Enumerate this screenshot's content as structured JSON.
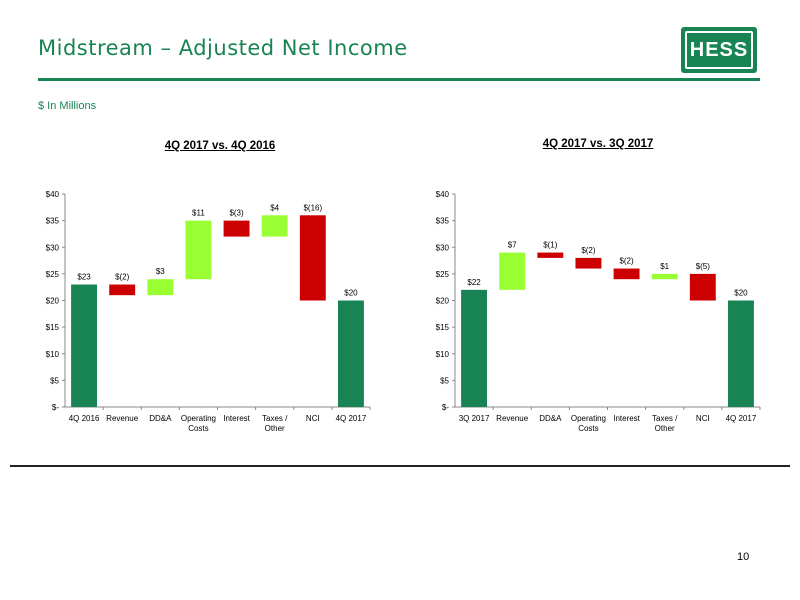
{
  "header": {
    "title": "Midstream – Adjusted Net Income",
    "units": "$ In Millions",
    "logo_text": "HESS"
  },
  "footer": {
    "page_number": "10"
  },
  "colors": {
    "start_end": "#188453",
    "increase": "#99FF33",
    "decrease": "#CC0000",
    "brand": "#188453"
  },
  "chart_data": [
    {
      "type": "bar",
      "subtype": "waterfall",
      "title": "4Q 2017 vs. 4Q 2016",
      "ylim": [
        0,
        40
      ],
      "yticks": [
        0,
        5,
        10,
        15,
        20,
        25,
        30,
        35,
        40
      ],
      "ytick_labels": [
        "$-",
        "$5",
        "$10",
        "$15",
        "$20",
        "$25",
        "$30",
        "$35",
        "$40"
      ],
      "categories": [
        "4Q 2016",
        "Revenue",
        "DD&A",
        "Operating Costs",
        "Interest",
        "Taxes / Other",
        "NCI",
        "4Q 2017"
      ],
      "category_labels": [
        [
          "4Q 2016"
        ],
        [
          "Revenue"
        ],
        [
          "DD&A"
        ],
        [
          "Operating",
          "Costs"
        ],
        [
          "Interest"
        ],
        [
          "Taxes /",
          "Other"
        ],
        [
          "NCI"
        ],
        [
          "4Q 2017"
        ]
      ],
      "bars": [
        {
          "kind": "total",
          "low": 0,
          "high": 23,
          "label": "$23"
        },
        {
          "kind": "decrease",
          "low": 21,
          "high": 23,
          "label": "$(2)"
        },
        {
          "kind": "increase",
          "low": 21,
          "high": 24,
          "label": "$3"
        },
        {
          "kind": "increase",
          "low": 24,
          "high": 35,
          "label": "$11"
        },
        {
          "kind": "decrease",
          "low": 32,
          "high": 35,
          "label": "$(3)"
        },
        {
          "kind": "increase",
          "low": 32,
          "high": 36,
          "label": "$4"
        },
        {
          "kind": "decrease",
          "low": 20,
          "high": 36,
          "label": "$(16)"
        },
        {
          "kind": "total",
          "low": 0,
          "high": 20,
          "label": "$20"
        }
      ],
      "grid": false,
      "legend": "none"
    },
    {
      "type": "bar",
      "subtype": "waterfall",
      "title": "4Q 2017 vs. 3Q 2017",
      "ylim": [
        0,
        40
      ],
      "yticks": [
        0,
        5,
        10,
        15,
        20,
        25,
        30,
        35,
        40
      ],
      "ytick_labels": [
        "$-",
        "$5",
        "$10",
        "$15",
        "$20",
        "$25",
        "$30",
        "$35",
        "$40"
      ],
      "categories": [
        "3Q 2017",
        "Revenue",
        "DD&A",
        "Operating Costs",
        "Interest",
        "Taxes / Other",
        "NCI",
        "4Q 2017"
      ],
      "category_labels": [
        [
          "3Q 2017"
        ],
        [
          "Revenue"
        ],
        [
          "DD&A"
        ],
        [
          "Operating",
          "Costs"
        ],
        [
          "Interest"
        ],
        [
          "Taxes /",
          "Other"
        ],
        [
          "NCI"
        ],
        [
          "4Q 2017"
        ]
      ],
      "bars": [
        {
          "kind": "total",
          "low": 0,
          "high": 22,
          "label": "$22"
        },
        {
          "kind": "increase",
          "low": 22,
          "high": 29,
          "label": "$7"
        },
        {
          "kind": "decrease",
          "low": 28,
          "high": 29,
          "label": "$(1)"
        },
        {
          "kind": "decrease",
          "low": 26,
          "high": 28,
          "label": "$(2)"
        },
        {
          "kind": "decrease",
          "low": 24,
          "high": 26,
          "label": "$(2)"
        },
        {
          "kind": "increase",
          "low": 24,
          "high": 25,
          "label": "$1"
        },
        {
          "kind": "decrease",
          "low": 20,
          "high": 25,
          "label": "$(5)"
        },
        {
          "kind": "total",
          "low": 0,
          "high": 20,
          "label": "$20"
        }
      ],
      "grid": false,
      "legend": "none"
    }
  ]
}
